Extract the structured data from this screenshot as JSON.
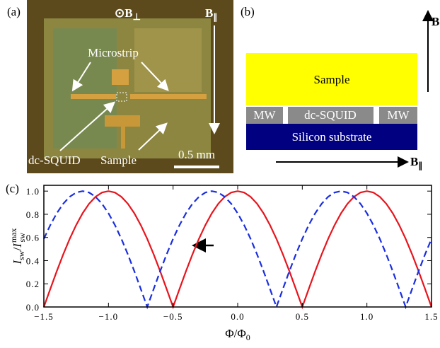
{
  "panel_a": {
    "label": "(a)",
    "field_perp": [
      "⊙B",
      "⊥"
    ],
    "field_par": [
      "B",
      "∥"
    ],
    "microstrip": "Microstrip",
    "squid": "dc-SQUID",
    "sample": "Sample",
    "scale": "0.5 mm"
  },
  "panel_b": {
    "label": "(b)",
    "field_perp": "B",
    "sample": "Sample",
    "mw_left": "MW",
    "squid": "dc-SQUID",
    "mw_right": "MW",
    "substrate": "Silicon substrate",
    "field_par": [
      "B",
      "∥"
    ]
  },
  "chart_data": {
    "type": "line",
    "label": "(c)",
    "ylabel": [
      "I",
      "sw",
      "/",
      "I",
      "max",
      "sw"
    ],
    "xlabel": [
      "Φ/Φ",
      "0"
    ],
    "x": [
      -1.5,
      -1.45,
      -1.4,
      -1.35,
      -1.3,
      -1.25,
      -1.2,
      -1.15,
      -1.1,
      -1.05,
      -1.0,
      -0.95,
      -0.9,
      -0.85,
      -0.8,
      -0.75,
      -0.7,
      -0.65,
      -0.6,
      -0.55,
      -0.5,
      -0.45,
      -0.4,
      -0.35,
      -0.3,
      -0.25,
      -0.2,
      -0.15,
      -0.1,
      -0.05,
      0,
      0.05,
      0.1,
      0.15,
      0.2,
      0.25,
      0.3,
      0.35,
      0.4,
      0.45,
      0.5,
      0.55,
      0.6,
      0.65,
      0.7,
      0.75,
      0.8,
      0.85,
      0.9,
      0.95,
      1.0,
      1.05,
      1.1,
      1.15,
      1.2,
      1.25,
      1.3,
      1.35,
      1.4,
      1.45,
      1.5
    ],
    "series": [
      {
        "color": "#e8141c",
        "linestyle": "solid",
        "values": [
          0,
          0.156,
          0.309,
          0.454,
          0.588,
          0.707,
          0.809,
          0.891,
          0.951,
          0.988,
          1,
          0.988,
          0.951,
          0.891,
          0.809,
          0.707,
          0.588,
          0.454,
          0.309,
          0.156,
          0,
          0.156,
          0.309,
          0.454,
          0.588,
          0.707,
          0.809,
          0.891,
          0.951,
          0.988,
          1,
          0.988,
          0.951,
          0.891,
          0.809,
          0.707,
          0.588,
          0.454,
          0.309,
          0.156,
          0,
          0.156,
          0.309,
          0.454,
          0.588,
          0.707,
          0.809,
          0.891,
          0.951,
          0.988,
          1,
          0.988,
          0.951,
          0.891,
          0.809,
          0.707,
          0.588,
          0.454,
          0.309,
          0.156,
          0
        ]
      },
      {
        "color": "#1a2ee0",
        "linestyle": "dashed",
        "values": [
          0.588,
          0.707,
          0.809,
          0.891,
          0.951,
          0.988,
          1,
          0.988,
          0.951,
          0.891,
          0.809,
          0.707,
          0.588,
          0.454,
          0.309,
          0.156,
          0,
          0.156,
          0.309,
          0.454,
          0.588,
          0.707,
          0.809,
          0.891,
          0.951,
          0.988,
          1,
          0.988,
          0.951,
          0.891,
          0.809,
          0.707,
          0.588,
          0.454,
          0.309,
          0.156,
          0,
          0.156,
          0.309,
          0.454,
          0.588,
          0.707,
          0.809,
          0.891,
          0.951,
          0.988,
          1,
          0.988,
          0.951,
          0.891,
          0.809,
          0.707,
          0.588,
          0.454,
          0.309,
          0.156,
          0,
          0.156,
          0.309,
          0.454,
          0.588
        ]
      }
    ],
    "xlim": [
      -1.5,
      1.5
    ],
    "xticks": [
      {
        "value": -1.5,
        "label": "−1.5"
      },
      {
        "value": -1.0,
        "label": "−1.0"
      },
      {
        "value": -0.5,
        "label": "−0.5"
      },
      {
        "value": 0,
        "label": "0.0"
      },
      0.5,
      {
        "value": 1.0,
        "label": "1.0"
      },
      1.5
    ],
    "ylim": [
      0,
      1.05
    ],
    "yticks": [
      {
        "value": 0,
        "label": "0.0"
      },
      0.2,
      0.4,
      0.6,
      0.8,
      {
        "value": 1.0,
        "label": "1.0"
      }
    ]
  }
}
